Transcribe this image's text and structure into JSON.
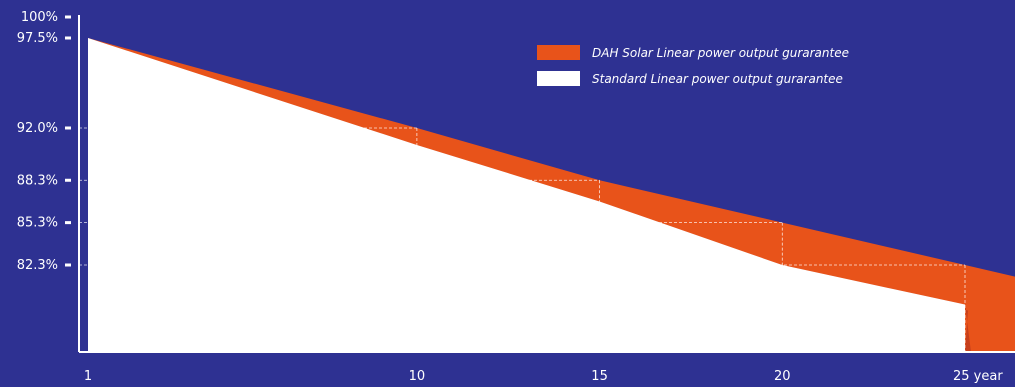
{
  "colors": {
    "background": "#2e3192",
    "dah": "#e8531a",
    "dah_shadow": "#c63f1c",
    "standard": "#ffffff",
    "axis": "#ffffff",
    "guide": "#ffffff"
  },
  "chart_data": {
    "type": "area",
    "title": "",
    "xlabel": "",
    "ylabel": "",
    "x_ticks": [
      {
        "value": 1,
        "label": "1"
      },
      {
        "value": 10,
        "label": "10"
      },
      {
        "value": 15,
        "label": "15"
      },
      {
        "value": 20,
        "label": "20"
      },
      {
        "value": 25,
        "label": "25 year"
      }
    ],
    "y_ticks": [
      {
        "value": 100,
        "label": "100%"
      },
      {
        "value": 97.5,
        "label": "97.5%"
      },
      {
        "value": 92.0,
        "label": "92.0%"
      },
      {
        "value": 88.3,
        "label": "88.3%"
      },
      {
        "value": 85.3,
        "label": "85.3%"
      },
      {
        "value": 82.3,
        "label": "82.3%"
      }
    ],
    "xlim": [
      1,
      25
    ],
    "ylim": [
      71,
      100
    ],
    "legend_position": "top-right",
    "series": [
      {
        "name": "DAH Solar Linear power output gurarantee",
        "x": [
          1,
          10,
          15,
          20,
          25
        ],
        "y": [
          97.5,
          92.0,
          88.3,
          85.3,
          82.3
        ]
      },
      {
        "name": "Standard Linear power output gurarantee",
        "x": [
          1,
          10,
          15,
          20,
          25
        ],
        "y": [
          97.5,
          90.8,
          86.8,
          82.3,
          79.5
        ]
      }
    ],
    "guides": [
      {
        "x": 10,
        "y": 92.0
      },
      {
        "x": 15,
        "y": 88.3
      },
      {
        "x": 20,
        "y": 85.3
      },
      {
        "x": 25,
        "y": 82.3
      }
    ]
  }
}
